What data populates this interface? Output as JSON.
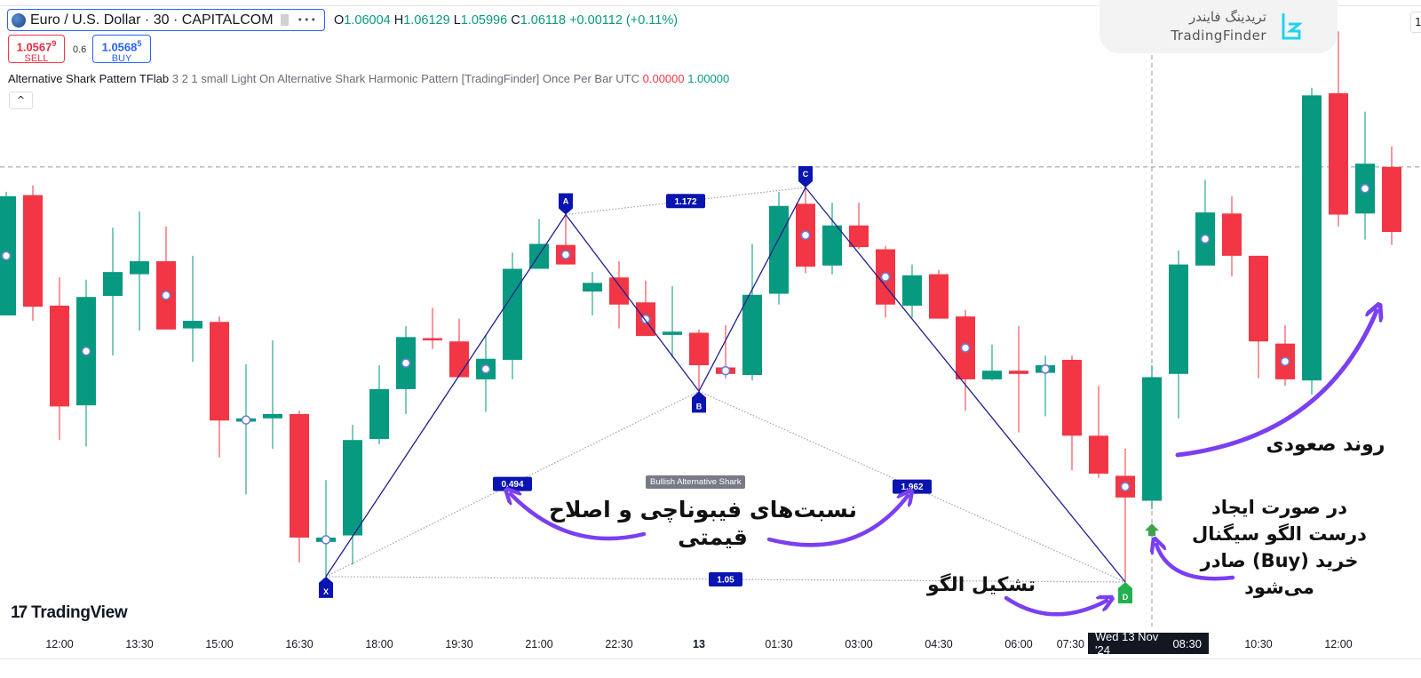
{
  "header": {
    "symbol_title": "Euro / U.S. Dollar · 30 · CAPITALCOM",
    "more_label": "•••",
    "ohlc": {
      "o_label": "O",
      "o": "1.06004",
      "h_label": "H",
      "h": "1.06129",
      "l_label": "L",
      "l": "1.05996",
      "c_label": "C",
      "c": "1.06118",
      "change": "+0.00112 (+0.11%)"
    },
    "sell": {
      "price": "1.0567",
      "price_sup": "9",
      "label": "SELL"
    },
    "spread": "0.6",
    "buy": {
      "price": "1.0568",
      "price_sup": "5",
      "label": "BUY"
    },
    "indicator": {
      "name": "Alternative Shark Pattern TFlab",
      "args": "3 2 1 small Light On Alternative Shark Harmonic Pattern [TradingFinder] Once Per Bar UTC",
      "value1": "0.00000",
      "value2": "1.00000"
    },
    "collapse_icon": "^",
    "corner_button": "1"
  },
  "watermark": {
    "fa": "تریدینگ فایندر",
    "en": "TradingFinder"
  },
  "tradingview_logo": {
    "mark": "17",
    "text": "TradingView"
  },
  "crosshair": {
    "date": "Wed 13 Nov '24",
    "time": "08:30"
  },
  "annotations": {
    "fib_line1": "نسبت‌های فیبوناچی و اصلاح",
    "fib_line2": "قیمتی",
    "formation": "تشکیل الگو",
    "signal_line1": "در صورت ایجاد",
    "signal_line2": "درست الگو سیگنال",
    "signal_line3": "خرید (Buy) صادر",
    "signal_line4": "می‌شود",
    "uptrend": "روند صعودی"
  },
  "colors": {
    "up": "#089981",
    "down": "#f23645",
    "pattern": "#1f1f8f",
    "marker": "#0a14b0",
    "d_marker": "#22b14c",
    "arrow": "#7b3ff2",
    "accent": "#2962ff"
  },
  "chart_data": {
    "type": "candlestick",
    "title": "Euro / U.S. Dollar · 30 · CAPITALCOM",
    "ylim": [
      1.05888,
      1.06466
    ],
    "grid": false,
    "candles_ohlc": [
      [
        1.06175,
        1.06289,
        1.06175,
        1.06285
      ],
      [
        1.06286,
        1.06295,
        1.0617,
        1.06183
      ],
      [
        1.06184,
        1.0621,
        1.0606,
        1.06091
      ],
      [
        1.06092,
        1.06208,
        1.06054,
        1.06192
      ],
      [
        1.06193,
        1.06256,
        1.06138,
        1.06215
      ],
      [
        1.06213,
        1.06271,
        1.06161,
        1.06225
      ],
      [
        1.06225,
        1.06257,
        1.06162,
        1.06162
      ],
      [
        1.06163,
        1.0623,
        1.06132,
        1.0617
      ],
      [
        1.06169,
        1.06174,
        1.06044,
        1.06078
      ],
      [
        1.06077,
        1.0613,
        1.0601,
        1.0608
      ],
      [
        1.0608,
        1.06152,
        1.06052,
        1.06084
      ],
      [
        1.06084,
        1.06087,
        1.05947,
        1.0597
      ],
      [
        1.05966,
        1.06023,
        1.05934,
        1.0597
      ],
      [
        1.05972,
        1.06074,
        1.05945,
        1.0606
      ],
      [
        1.06061,
        1.06129,
        1.06056,
        1.06107
      ],
      [
        1.06107,
        1.06165,
        1.06084,
        1.06155
      ],
      [
        1.06154,
        1.06182,
        1.06144,
        1.06152
      ],
      [
        1.06151,
        1.06172,
        1.06118,
        1.06118
      ],
      [
        1.06116,
        1.06157,
        1.06086,
        1.06135
      ],
      [
        1.06134,
        1.06233,
        1.06116,
        1.06218
      ],
      [
        1.06218,
        1.06264,
        1.06218,
        1.06241
      ],
      [
        1.0624,
        1.06268,
        1.06222,
        1.06222
      ],
      [
        1.06197,
        1.06215,
        1.06175,
        1.06205
      ],
      [
        1.0621,
        1.06225,
        1.06163,
        1.06185
      ],
      [
        1.06187,
        1.06207,
        1.06156,
        1.06156
      ],
      [
        1.06157,
        1.06202,
        1.06136,
        1.0616
      ],
      [
        1.06159,
        1.06162,
        1.06105,
        1.06129
      ],
      [
        1.06127,
        1.06166,
        1.06117,
        1.06121
      ],
      [
        1.0612,
        1.06241,
        1.06115,
        1.06194
      ],
      [
        1.06195,
        1.06289,
        1.06185,
        1.06276
      ],
      [
        1.06278,
        1.06293,
        1.06214,
        1.0622
      ],
      [
        1.06221,
        1.06279,
        1.06213,
        1.06258
      ],
      [
        1.06258,
        1.06279,
        1.06236,
        1.06238
      ],
      [
        1.06236,
        1.06239,
        1.06173,
        1.06185
      ],
      [
        1.06184,
        1.06222,
        1.06173,
        1.06212
      ],
      [
        1.06213,
        1.06217,
        1.06172,
        1.06172
      ],
      [
        1.06174,
        1.0618,
        1.06087,
        1.06116
      ],
      [
        1.06116,
        1.06148,
        1.06115,
        1.06124
      ],
      [
        1.06124,
        1.06165,
        1.06067,
        1.06121
      ],
      [
        1.06122,
        1.06138,
        1.06082,
        1.06129
      ],
      [
        1.06134,
        1.06138,
        1.06032,
        1.06064
      ],
      [
        1.06064,
        1.0611,
        1.06025,
        1.06029
      ],
      [
        1.06027,
        1.06052,
        1.05929,
        1.06007
      ],
      [
        1.06004,
        1.06129,
        1.05996,
        1.06118
      ],
      [
        1.06121,
        1.06235,
        1.0608,
        1.06222
      ],
      [
        1.06221,
        1.063,
        1.06221,
        1.0627
      ],
      [
        1.06269,
        1.06285,
        1.06211,
        1.0623
      ],
      [
        1.0623,
        1.0623,
        1.06117,
        1.06151
      ],
      [
        1.06149,
        1.06166,
        1.0611,
        1.06116
      ],
      [
        1.06115,
        1.06385,
        1.06102,
        1.06378
      ],
      [
        1.0638,
        1.06437,
        1.06257,
        1.06268
      ],
      [
        1.06269,
        1.06363,
        1.06245,
        1.06315
      ],
      [
        1.06312,
        1.06331,
        1.0624,
        1.06252
      ]
    ],
    "ring_marker_bars": [
      0,
      3,
      6,
      9,
      12,
      15,
      18,
      21,
      24,
      27,
      30,
      33,
      36,
      39,
      42,
      45,
      48,
      51
    ],
    "x_ticks": [
      {
        "bar": 2,
        "label": "12:00"
      },
      {
        "bar": 5,
        "label": "13:30"
      },
      {
        "bar": 8,
        "label": "15:00"
      },
      {
        "bar": 11,
        "label": "16:30"
      },
      {
        "bar": 14,
        "label": "18:00"
      },
      {
        "bar": 17,
        "label": "19:30"
      },
      {
        "bar": 20,
        "label": "21:00"
      },
      {
        "bar": 23,
        "label": "22:30"
      },
      {
        "bar": 26,
        "label": "13",
        "bold": true
      },
      {
        "bar": 29,
        "label": "01:30"
      },
      {
        "bar": 32,
        "label": "03:00"
      },
      {
        "bar": 35,
        "label": "04:30"
      },
      {
        "bar": 38,
        "label": "06:00"
      },
      {
        "bar": 41,
        "label": "07:30"
      },
      {
        "bar": 47,
        "label": "10:30"
      },
      {
        "bar": 50,
        "label": "12:00"
      }
    ],
    "pattern": {
      "name": "Bullish Alternative Shark",
      "points": [
        {
          "label": "X",
          "bar": 12,
          "price": 1.05934,
          "side": "below"
        },
        {
          "label": "A",
          "bar": 21,
          "price": 1.06268,
          "side": "above"
        },
        {
          "label": "B",
          "bar": 26,
          "price": 1.06105,
          "side": "below"
        },
        {
          "label": "C",
          "bar": 30,
          "price": 1.06293,
          "side": "above"
        },
        {
          "label": "D",
          "bar": 42,
          "price": 1.05929,
          "side": "below"
        }
      ],
      "ratios": [
        {
          "from": "A",
          "to": "C",
          "value": "1.172"
        },
        {
          "from": "X",
          "to": "B",
          "value": "0.494"
        },
        {
          "from": "B",
          "to": "D",
          "value": "1.962"
        },
        {
          "from": "X",
          "to": "D",
          "value": "1.05"
        }
      ]
    },
    "buy_signal_bar": 43,
    "crosshair": {
      "bar": 43,
      "price": 1.06312
    }
  }
}
